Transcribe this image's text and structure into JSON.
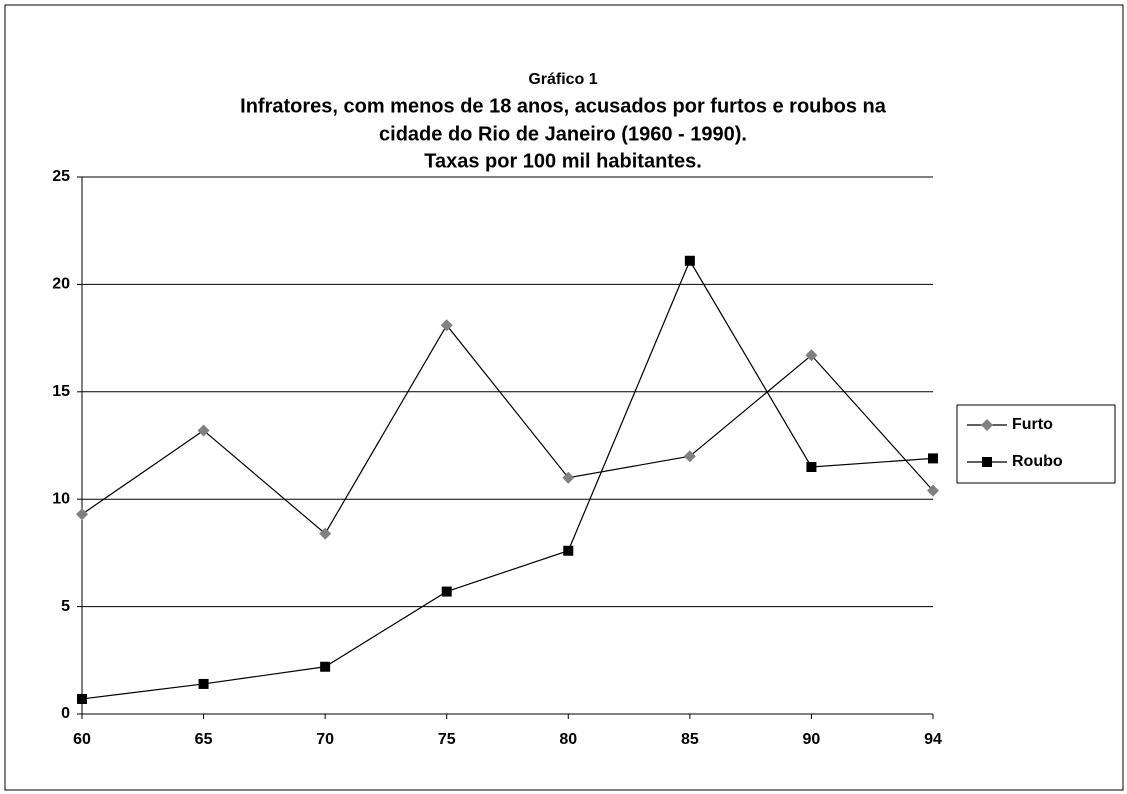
{
  "chart_data": {
    "type": "line",
    "subtitle": "Gráfico 1",
    "title": [
      "Infratores, com menos de 18 anos, acusados por furtos e roubos na",
      "cidade do Rio de Janeiro (1960 - 1990).",
      "Taxas por 100 mil habitantes."
    ],
    "categories": [
      "60",
      "65",
      "70",
      "75",
      "80",
      "85",
      "90",
      "94"
    ],
    "series": [
      {
        "name": "Furto",
        "color": "#808080",
        "marker": "diamond",
        "values": [
          9.3,
          13.2,
          8.4,
          18.1,
          11.0,
          12.0,
          16.7,
          10.4
        ]
      },
      {
        "name": "Roubo",
        "color": "#000000",
        "marker": "square",
        "values": [
          0.7,
          1.4,
          2.2,
          5.7,
          7.6,
          21.1,
          11.5,
          11.9
        ]
      }
    ],
    "line_color": "#000000",
    "ylim": [
      0,
      25
    ],
    "yticks": [
      0,
      5,
      10,
      15,
      20,
      25
    ],
    "grid": true,
    "legend": "right"
  }
}
